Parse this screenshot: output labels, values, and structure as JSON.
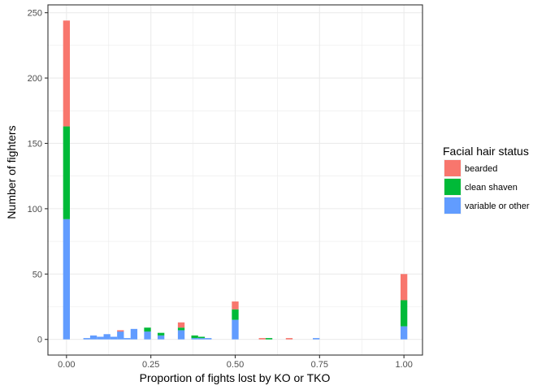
{
  "chart_data": {
    "type": "bar",
    "stacked": true,
    "xlabel": "Proportion of fights lost by KO or TKO",
    "ylabel": "Number of fighters",
    "xlim": [
      -0.055,
      1.055
    ],
    "ylim": [
      -12,
      256
    ],
    "x_ticks": [
      0,
      0.25,
      0.5,
      0.75,
      1
    ],
    "x_tick_labels": [
      "0.00",
      "0.25",
      "0.50",
      "0.75",
      "1.00"
    ],
    "y_ticks": [
      0,
      50,
      100,
      150,
      200,
      250
    ],
    "y_tick_labels": [
      "0",
      "50",
      "100",
      "150",
      "200",
      "250"
    ],
    "grid": true,
    "bin_width": 0.02,
    "x": [
      0.0,
      0.06,
      0.08,
      0.1,
      0.12,
      0.14,
      0.16,
      0.18,
      0.2,
      0.24,
      0.28,
      0.34,
      0.38,
      0.4,
      0.42,
      0.5,
      0.58,
      0.6,
      0.66,
      0.74,
      1.0
    ],
    "series": [
      {
        "name": "variable or other",
        "color": "#619CFF",
        "values": [
          92,
          1,
          3,
          2,
          4,
          2,
          6,
          1,
          8,
          6,
          3,
          7,
          1,
          1,
          1,
          15,
          0,
          0,
          0,
          1,
          10
        ]
      },
      {
        "name": "clean shaven",
        "color": "#00BA38",
        "values": [
          71,
          0,
          0,
          0,
          0,
          0,
          0,
          0,
          0,
          3,
          2,
          2,
          2,
          1,
          0,
          8,
          0,
          1,
          0,
          0,
          20
        ]
      },
      {
        "name": "bearded",
        "color": "#F8766D",
        "values": [
          81,
          0,
          0,
          0,
          0,
          0,
          1,
          0,
          0,
          0,
          0,
          4,
          0,
          0,
          0,
          6,
          1,
          0,
          1,
          0,
          20
        ]
      }
    ],
    "legend": {
      "title": "Facial hair status",
      "position": "right",
      "items": [
        {
          "label": "bearded",
          "color": "#F8766D"
        },
        {
          "label": "clean shaven",
          "color": "#00BA38"
        },
        {
          "label": "variable or other",
          "color": "#619CFF"
        }
      ]
    }
  }
}
